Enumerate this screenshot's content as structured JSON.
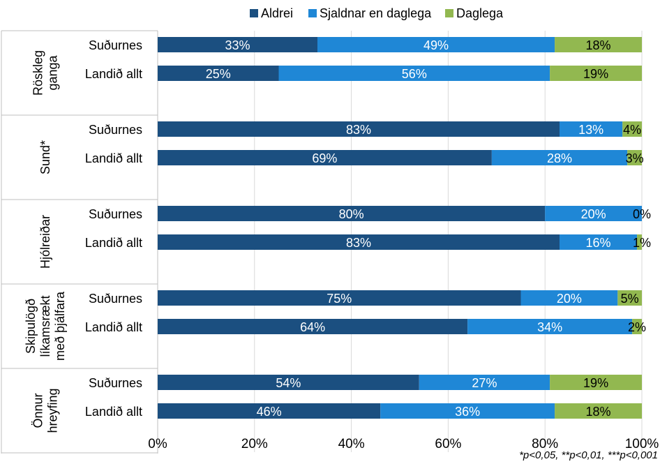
{
  "chart_data": {
    "type": "bar",
    "orientation": "horizontal",
    "stacked": true,
    "legend": {
      "position": "top",
      "entries": [
        "Aldrei",
        "Sjaldnar en daglega",
        "Daglega"
      ]
    },
    "series": [
      {
        "name": "Aldrei",
        "color": "#1b4f80"
      },
      {
        "name": "Sjaldnar en daglega",
        "color": "#1f87d6"
      },
      {
        "name": "Daglega",
        "color": "#92b850"
      }
    ],
    "groups": [
      {
        "label": "Röskleg ganga",
        "label_lines": [
          "Röskleg",
          "ganga"
        ],
        "rows": [
          {
            "label": "Suðurnes",
            "values": [
              33,
              49,
              18
            ],
            "data_labels": [
              "33%",
              "49%",
              "18%"
            ]
          },
          {
            "label": "Landið allt",
            "values": [
              25,
              56,
              19
            ],
            "data_labels": [
              "25%",
              "56%",
              "19%"
            ]
          }
        ]
      },
      {
        "label": "Sund*",
        "label_lines": [
          "Sund*"
        ],
        "rows": [
          {
            "label": "Suðurnes",
            "values": [
              83,
              13,
              4
            ],
            "data_labels": [
              "83%",
              "13%",
              "4%"
            ]
          },
          {
            "label": "Landið allt",
            "values": [
              69,
              28,
              3
            ],
            "data_labels": [
              "69%",
              "28%",
              "3%"
            ]
          }
        ]
      },
      {
        "label": "Hjólreiðar",
        "label_lines": [
          "Hjólreiðar"
        ],
        "rows": [
          {
            "label": "Suðurnes",
            "values": [
              80,
              20,
              0
            ],
            "data_labels": [
              "80%",
              "20%",
              "0%"
            ]
          },
          {
            "label": "Landið allt",
            "values": [
              83,
              16,
              1
            ],
            "data_labels": [
              "83%",
              "16%",
              "1%"
            ]
          }
        ]
      },
      {
        "label": "Skipulögð líkamsrækt með þjálfara",
        "label_lines": [
          "Skipulögð",
          "líkamsrækt",
          "með þjálfara"
        ],
        "rows": [
          {
            "label": "Suðurnes",
            "values": [
              75,
              20,
              5
            ],
            "data_labels": [
              "75%",
              "20%",
              "5%"
            ]
          },
          {
            "label": "Landið allt",
            "values": [
              64,
              34,
              2
            ],
            "data_labels": [
              "64%",
              "34%",
              "2%"
            ]
          }
        ]
      },
      {
        "label": "Önnur hreyfing",
        "label_lines": [
          "Önnur",
          "hreyfing"
        ],
        "rows": [
          {
            "label": "Suðurnes",
            "values": [
              54,
              27,
              19
            ],
            "data_labels": [
              "54%",
              "27%",
              "19%"
            ]
          },
          {
            "label": "Landið allt",
            "values": [
              46,
              36,
              18
            ],
            "data_labels": [
              "46%",
              "36%",
              "18%"
            ]
          }
        ]
      }
    ],
    "x_axis": {
      "range": [
        0,
        100
      ],
      "ticks": [
        0,
        20,
        40,
        60,
        80,
        100
      ],
      "tick_labels": [
        "0%",
        "20%",
        "40%",
        "60%",
        "80%",
        "100%"
      ],
      "gridlines": true
    },
    "footnote": "*p<0,05, **p<0,01, ***p<0,001"
  }
}
